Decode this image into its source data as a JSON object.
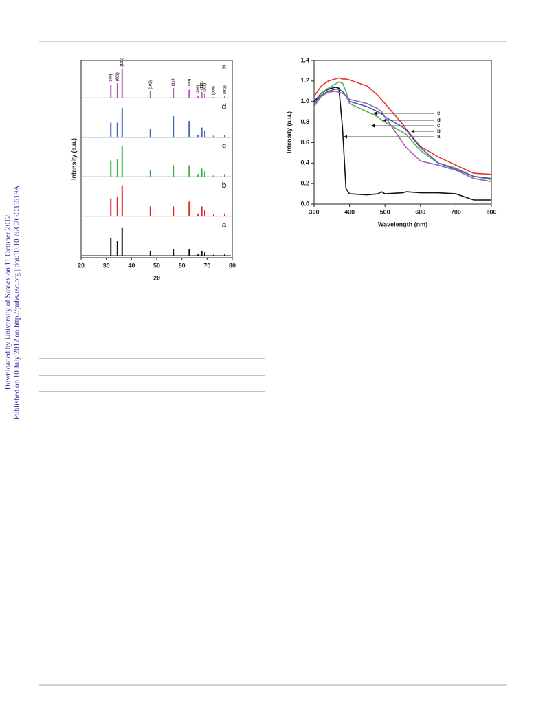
{
  "side_note": [
    "Downloaded by University of Sussex on 11 October 2012",
    "Published on 10 July 2012 on http://pubs.rsc.org | doi:10.1039/C2GC35519A"
  ],
  "chart_data": [
    {
      "type": "stacked-pattern",
      "xlabel": "2θ",
      "ylabel": "Intensity (a.u.)",
      "xlim": [
        20,
        80
      ],
      "xticks": [
        20,
        30,
        40,
        50,
        60,
        70,
        80
      ],
      "x": [
        31.8,
        34.4,
        36.3,
        47.5,
        56.6,
        62.9,
        66.4,
        67.9,
        69.1,
        72.6,
        77.0
      ],
      "peak_labels": [
        "(100)",
        "(002)",
        "(101)",
        "(102)",
        "(110)",
        "(103)",
        "(200)",
        "(112)",
        "(201)",
        "(004)",
        "(202)"
      ],
      "series": [
        {
          "name": "a",
          "color": "#111111",
          "values": [
            0.55,
            0.45,
            0.85,
            0.15,
            0.2,
            0.2,
            0.04,
            0.15,
            0.1,
            0.03,
            0.04
          ]
        },
        {
          "name": "b",
          "color": "#e0252a",
          "values": [
            0.55,
            0.6,
            0.95,
            0.3,
            0.3,
            0.45,
            0.08,
            0.3,
            0.2,
            0.05,
            0.08
          ]
        },
        {
          "name": "c",
          "color": "#3fb03f",
          "values": [
            0.5,
            0.55,
            0.95,
            0.2,
            0.35,
            0.35,
            0.08,
            0.25,
            0.17,
            0.04,
            0.08
          ]
        },
        {
          "name": "d",
          "color": "#3b63b7",
          "values": [
            0.45,
            0.45,
            0.9,
            0.25,
            0.65,
            0.5,
            0.08,
            0.3,
            0.2,
            0.05,
            0.08
          ]
        },
        {
          "name": "e",
          "color": "#b35ab7",
          "values": [
            0.4,
            0.45,
            0.9,
            0.2,
            0.3,
            0.25,
            0.06,
            0.18,
            0.12,
            0.03,
            0.05
          ]
        }
      ]
    },
    {
      "type": "line",
      "xlabel": "Wavelength (nm)",
      "ylabel": "Intensity (a.u.)",
      "xlim": [
        300,
        800
      ],
      "xticks": [
        300,
        400,
        500,
        600,
        700,
        800
      ],
      "ylim": [
        0,
        1.4
      ],
      "yticks": [
        {
          "value": 0,
          "label": "0.0"
        },
        0.2,
        0.4,
        0.6,
        0.8,
        {
          "value": 1,
          "label": "1.0"
        },
        1.2,
        1.4
      ],
      "x": [
        300,
        320,
        340,
        360,
        370,
        380,
        390,
        400,
        450,
        480,
        490,
        500,
        550,
        560,
        600,
        650,
        700,
        750,
        800
      ],
      "series": [
        {
          "name": "a",
          "color": "#111111",
          "values": [
            1.0,
            1.08,
            1.12,
            1.14,
            1.13,
            0.75,
            0.15,
            0.1,
            0.09,
            0.1,
            0.12,
            0.1,
            0.11,
            0.12,
            0.11,
            0.11,
            0.1,
            0.04,
            0.04
          ]
        },
        {
          "name": "b",
          "color": "#e8322f",
          "values": [
            1.05,
            1.15,
            1.2,
            1.22,
            1.23,
            1.22,
            1.22,
            1.21,
            1.15,
            1.06,
            1.02,
            0.98,
            0.78,
            0.73,
            0.56,
            0.46,
            0.38,
            0.3,
            0.29
          ]
        },
        {
          "name": "c",
          "color": "#5ab04a",
          "values": [
            0.97,
            1.08,
            1.13,
            1.17,
            1.19,
            1.18,
            1.1,
            0.98,
            0.9,
            0.85,
            0.82,
            0.8,
            0.7,
            0.68,
            0.52,
            0.4,
            0.35,
            0.27,
            0.24
          ]
        },
        {
          "name": "d",
          "color": "#3d62b5",
          "values": [
            0.98,
            1.06,
            1.1,
            1.12,
            1.12,
            1.1,
            1.05,
            1.0,
            0.95,
            0.9,
            0.88,
            0.85,
            0.75,
            0.72,
            0.55,
            0.4,
            0.34,
            0.27,
            0.25
          ]
        },
        {
          "name": "e",
          "color": "#a25bb5",
          "values": [
            0.95,
            1.05,
            1.09,
            1.1,
            1.09,
            1.08,
            1.06,
            1.02,
            0.98,
            0.93,
            0.9,
            0.85,
            0.6,
            0.55,
            0.42,
            0.38,
            0.33,
            0.25,
            0.22
          ]
        }
      ]
    }
  ]
}
